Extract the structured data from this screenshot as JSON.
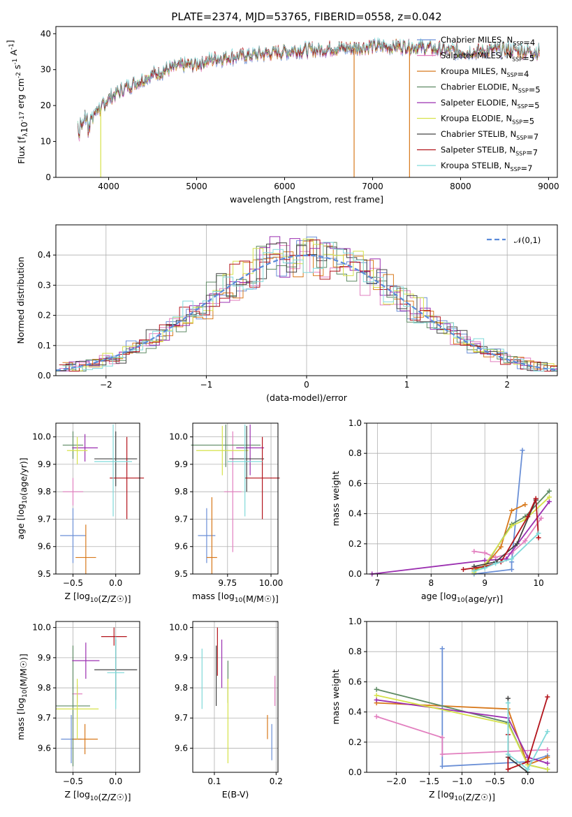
{
  "chart_data": [
    {
      "id": "spectrum",
      "type": "line",
      "title": "PLATE=2374, MJD=53765, FIBERID=0558, z=0.042",
      "xlabel": "wavelength [Angstrom, rest frame]",
      "ylabel": "Flux [f_λ10^-17 erg cm^-2 s^-1 A^-1]",
      "xlim": [
        3400,
        9100
      ],
      "ylim": [
        0,
        42
      ],
      "xticks": [
        4000,
        5000,
        6000,
        7000,
        8000,
        9000
      ],
      "yticks": [
        0,
        10,
        20,
        30,
        40
      ],
      "grid": false,
      "legend_position": "top-right",
      "continuum": {
        "x": [
          3650,
          3700,
          3800,
          3900,
          4000,
          4200,
          4400,
          4600,
          4800,
          5000,
          5200,
          5400,
          5600,
          5800,
          6000,
          6200,
          6400,
          6600,
          6800,
          7000,
          7200,
          7400,
          7600,
          7800,
          8000,
          8200,
          8400,
          8600,
          8800
        ],
        "y": [
          15,
          16,
          18,
          19,
          22,
          25,
          27.5,
          29.5,
          31,
          31.5,
          33,
          33.5,
          34,
          34.5,
          35,
          35.5,
          35.5,
          36,
          36,
          36.5,
          36.5,
          36.5,
          36,
          35.5,
          35,
          35,
          35.5,
          35.5,
          35
        ]
      },
      "series": [
        {
          "name": "Chabrier MILES, N_SSP=4",
          "color": "#6a8fd6"
        },
        {
          "name": "Salpeter MILES, N_SSP=5",
          "color": "#e27fbf"
        },
        {
          "name": "Kroupa MILES, N_SSP=4",
          "color": "#d8791c"
        },
        {
          "name": "Chabrier ELODIE, N_SSP=5",
          "color": "#5e8a63"
        },
        {
          "name": "Salpeter ELODIE, N_SSP=5",
          "color": "#9b2fb0"
        },
        {
          "name": "Kroupa ELODIE, N_SSP=5",
          "color": "#d6e24a"
        },
        {
          "name": "Chabrier STELIB, N_SSP=7",
          "color": "#444444"
        },
        {
          "name": "Salpeter STELIB, N_SSP=7",
          "color": "#b3141c"
        },
        {
          "name": "Kroupa STELIB, N_SSP=7",
          "color": "#7fd9d9"
        }
      ]
    },
    {
      "id": "residuals",
      "type": "histogram",
      "xlabel": "(data-model)/error",
      "ylabel": "Normed distribution",
      "xlim": [
        -2.5,
        2.5
      ],
      "ylim": [
        0,
        0.5
      ],
      "xticks": [
        -2,
        -1,
        0,
        1,
        2
      ],
      "yticks": [
        0.0,
        0.1,
        0.2,
        0.3,
        0.4
      ],
      "grid": true,
      "legend": "𝒩(0,1)",
      "legend_position": "top-right",
      "reference_color": "#5b8bd9"
    },
    {
      "id": "z-age",
      "type": "scatter",
      "xlabel": "Z [log10(Z/Z☉)]",
      "ylabel": "age  [log10(age/yr)]",
      "xlim": [
        -0.7,
        0.28
      ],
      "ylim": [
        9.5,
        10.05
      ],
      "xticks": [
        -0.5,
        0.0
      ],
      "yticks": [
        9.5,
        9.6,
        9.7,
        9.8,
        9.9,
        10.0
      ],
      "grid": true,
      "points": [
        {
          "color": "#6a8fd6",
          "x": -0.5,
          "xerr": 0.15,
          "y": 9.64,
          "yerr": 0.1
        },
        {
          "color": "#e27fbf",
          "x": -0.5,
          "xerr": 0.12,
          "y": 9.8,
          "yerr": 0.05
        },
        {
          "color": "#d8791c",
          "x": -0.35,
          "xerr": 0.12,
          "y": 9.56,
          "yerr": 0.12
        },
        {
          "color": "#5e8a63",
          "x": -0.5,
          "xerr": 0.12,
          "y": 9.97,
          "yerr": 0.05
        },
        {
          "color": "#9b2fb0",
          "x": -0.36,
          "xerr": 0.15,
          "y": 9.96,
          "yerr": 0.05
        },
        {
          "color": "#d6e24a",
          "x": -0.45,
          "xerr": 0.12,
          "y": 9.95,
          "yerr": 0.05
        },
        {
          "color": "#444444",
          "x": 0.0,
          "xerr": 0.25,
          "y": 9.92,
          "yerr": 0.1
        },
        {
          "color": "#b3141c",
          "x": 0.13,
          "xerr": 0.2,
          "y": 9.85,
          "yerr": 0.15
        },
        {
          "color": "#7fd9d9",
          "x": -0.03,
          "xerr": 0.22,
          "y": 9.91,
          "yerr": 0.2
        }
      ]
    },
    {
      "id": "mass-age",
      "type": "scatter",
      "xlabel": "mass [log10(M/M☉)]",
      "ylabel": "",
      "xlim": [
        9.55,
        10.04
      ],
      "ylim": [
        9.5,
        10.05
      ],
      "xticks": [
        9.75,
        10.0
      ],
      "yticks": [
        9.5,
        9.6,
        9.7,
        9.8,
        9.9,
        10.0
      ],
      "grid": true,
      "points": [
        {
          "color": "#6a8fd6",
          "x": 9.63,
          "xerr": 0.05,
          "y": 9.64,
          "yerr": 0.1
        },
        {
          "color": "#e27fbf",
          "x": 9.78,
          "xerr": 0.05,
          "y": 9.8,
          "yerr": 0.22
        },
        {
          "color": "#d8791c",
          "x": 9.66,
          "xerr": 0.03,
          "y": 9.56,
          "yerr": 0.22
        },
        {
          "color": "#5e8a63",
          "x": 9.74,
          "xerr": 0.2,
          "y": 9.97,
          "yerr": 0.08
        },
        {
          "color": "#9b2fb0",
          "x": 9.88,
          "xerr": 0.08,
          "y": 9.96,
          "yerr": 0.1
        },
        {
          "color": "#d6e24a",
          "x": 9.72,
          "xerr": 0.15,
          "y": 9.95,
          "yerr": 0.09
        },
        {
          "color": "#444444",
          "x": 9.86,
          "xerr": 0.1,
          "y": 9.92,
          "yerr": 0.12
        },
        {
          "color": "#b3141c",
          "x": 9.95,
          "xerr": 0.1,
          "y": 9.85,
          "yerr": 0.15
        },
        {
          "color": "#7fd9d9",
          "x": 9.85,
          "xerr": 0.1,
          "y": 9.91,
          "yerr": 0.2
        }
      ]
    },
    {
      "id": "age-weight",
      "type": "line",
      "xlabel": "age  [log10(age/yr)]",
      "ylabel": "mass weight",
      "xlim": [
        6.8,
        10.35
      ],
      "ylim": [
        0,
        1
      ],
      "xticks": [
        7,
        8,
        9,
        10
      ],
      "yticks": [
        0.0,
        0.2,
        0.4,
        0.6,
        0.8,
        1.0
      ],
      "grid": true,
      "series": [
        {
          "color": "#6a8fd6",
          "x": [
            8.8,
            9.5,
            9.5,
            9.7
          ],
          "y": [
            0.0,
            0.03,
            0.08,
            0.82
          ]
        },
        {
          "color": "#e27fbf",
          "x": [
            8.8,
            9.0,
            9.2,
            9.5,
            9.75,
            10.05
          ],
          "y": [
            0.15,
            0.14,
            0.11,
            0.14,
            0.22,
            0.37
          ]
        },
        {
          "color": "#d8791c",
          "x": [
            8.8,
            9.0,
            9.3,
            9.5,
            9.75
          ],
          "y": [
            0.03,
            0.05,
            0.18,
            0.42,
            0.46
          ]
        },
        {
          "color": "#5e8a63",
          "x": [
            8.8,
            9.0,
            9.5,
            9.75,
            10.2
          ],
          "y": [
            0.02,
            0.05,
            0.33,
            0.38,
            0.55
          ]
        },
        {
          "color": "#9b2fb0",
          "x": [
            6.9,
            9.0,
            9.4,
            10.2
          ],
          "y": [
            0.0,
            0.09,
            0.1,
            0.48
          ]
        },
        {
          "color": "#d6e24a",
          "x": [
            8.8,
            9.0,
            9.5,
            9.75,
            10.2
          ],
          "y": [
            0.01,
            0.06,
            0.32,
            0.36,
            0.51
          ]
        },
        {
          "color": "#444444",
          "x": [
            8.8,
            9.2,
            9.6,
            9.95
          ],
          "y": [
            0.05,
            0.08,
            0.2,
            0.49
          ]
        },
        {
          "color": "#b3141c",
          "x": [
            8.6,
            9.0,
            9.3,
            9.8,
            9.95,
            10.0
          ],
          "y": [
            0.03,
            0.05,
            0.08,
            0.38,
            0.5,
            0.24
          ]
        },
        {
          "color": "#7fd9d9",
          "x": [
            8.8,
            9.0,
            9.2,
            9.5,
            10.0
          ],
          "y": [
            0.02,
            0.04,
            0.07,
            0.1,
            0.27
          ]
        }
      ]
    },
    {
      "id": "z-mass",
      "type": "scatter",
      "xlabel": "Z [log10(Z/Z☉)]",
      "ylabel": "mass [log10(M/M☉)]",
      "xlim": [
        -0.7,
        0.28
      ],
      "ylim": [
        9.52,
        10.02
      ],
      "xticks": [
        -0.5,
        0.0
      ],
      "yticks": [
        9.6,
        9.7,
        9.8,
        9.9,
        10.0
      ],
      "grid": true,
      "points": [
        {
          "color": "#6a8fd6",
          "x": -0.52,
          "xerr": 0.12,
          "y": 9.63,
          "yerr": 0.08
        },
        {
          "color": "#e27fbf",
          "x": -0.45,
          "xerr": 0.06,
          "y": 9.78,
          "yerr": 0.03
        },
        {
          "color": "#d8791c",
          "x": -0.36,
          "xerr": 0.15,
          "y": 9.63,
          "yerr": 0.05
        },
        {
          "color": "#5e8a63",
          "x": -0.5,
          "xerr": 0.2,
          "y": 9.74,
          "yerr": 0.2
        },
        {
          "color": "#9b2fb0",
          "x": -0.35,
          "xerr": 0.16,
          "y": 9.89,
          "yerr": 0.06
        },
        {
          "color": "#d6e24a",
          "x": -0.45,
          "xerr": 0.25,
          "y": 9.73,
          "yerr": 0.1
        },
        {
          "color": "#444444",
          "x": 0.0,
          "xerr": 0.25,
          "y": 9.86,
          "yerr": 0.1
        },
        {
          "color": "#b3141c",
          "x": -0.02,
          "xerr": 0.15,
          "y": 9.97,
          "yerr": 0.03
        },
        {
          "color": "#7fd9d9",
          "x": 0.0,
          "xerr": 0.1,
          "y": 9.85,
          "yerr": 0.12
        }
      ]
    },
    {
      "id": "ebv-mass",
      "type": "scatter",
      "xlabel": "E(B-V)",
      "ylabel": "",
      "xlim": [
        0.065,
        0.203
      ],
      "ylim": [
        9.52,
        10.02
      ],
      "xticks": [
        0.1,
        0.2
      ],
      "yticks": [
        9.6,
        9.7,
        9.8,
        9.9,
        10.0
      ],
      "grid": true,
      "points": [
        {
          "color": "#6a8fd6",
          "x": 0.193,
          "yerr": 0.06,
          "y": 9.62
        },
        {
          "color": "#e27fbf",
          "x": 0.198,
          "yerr": 0.05,
          "y": 9.79
        },
        {
          "color": "#d8791c",
          "x": 0.186,
          "yerr": 0.04,
          "y": 9.67
        },
        {
          "color": "#5e8a63",
          "x": 0.122,
          "yerr": 0.07,
          "y": 9.82
        },
        {
          "color": "#9b2fb0",
          "x": 0.112,
          "yerr": 0.08,
          "y": 9.88
        },
        {
          "color": "#d6e24a",
          "x": 0.122,
          "yerr": 0.14,
          "y": 9.69
        },
        {
          "color": "#444444",
          "x": 0.103,
          "yerr": 0.1,
          "y": 9.84
        },
        {
          "color": "#b3141c",
          "x": 0.105,
          "yerr": 0.08,
          "y": 9.92
        },
        {
          "color": "#7fd9d9",
          "x": 0.08,
          "yerr": 0.1,
          "y": 9.83
        }
      ]
    },
    {
      "id": "z-weight",
      "type": "line",
      "xlabel": "Z [log10(Z/Z☉)]",
      "ylabel": "mass weight",
      "xlim": [
        -2.45,
        0.45
      ],
      "ylim": [
        0,
        1
      ],
      "xticks": [
        -2.0,
        -1.5,
        -1.0,
        -0.5,
        0.0
      ],
      "yticks": [
        0.0,
        0.2,
        0.4,
        0.6,
        0.8,
        1.0
      ],
      "grid": true,
      "series": [
        {
          "color": "#6a8fd6",
          "x": [
            -1.3,
            -1.3,
            0.0,
            0.3
          ],
          "y": [
            0.82,
            0.04,
            0.07,
            0.11
          ]
        },
        {
          "color": "#e27fbf",
          "x": [
            -2.3,
            -1.3,
            -1.3,
            0.3
          ],
          "y": [
            0.37,
            0.23,
            0.12,
            0.15
          ]
        },
        {
          "color": "#d8791c",
          "x": [
            -2.3,
            -0.3,
            0.0,
            0.3
          ],
          "y": [
            0.46,
            0.42,
            0.05,
            0.1
          ]
        },
        {
          "color": "#5e8a63",
          "x": [
            -2.3,
            -0.3,
            0.0,
            0.3
          ],
          "y": [
            0.55,
            0.33,
            0.05,
            0.02
          ]
        },
        {
          "color": "#9b2fb0",
          "x": [
            -2.3,
            -0.3,
            0.0,
            0.3
          ],
          "y": [
            0.48,
            0.36,
            0.1,
            0.06
          ]
        },
        {
          "color": "#d6e24a",
          "x": [
            -2.3,
            -0.3,
            0.0,
            0.3
          ],
          "y": [
            0.51,
            0.32,
            0.05,
            0.02
          ]
        },
        {
          "color": "#444444",
          "x": [
            -0.3,
            -0.3,
            0.0
          ],
          "y": [
            0.49,
            0.1,
            0.0
          ]
        },
        {
          "color": "#b3141c",
          "x": [
            -0.3,
            -0.3,
            0.0,
            0.3
          ],
          "y": [
            0.25,
            0.02,
            0.07,
            0.5
          ]
        },
        {
          "color": "#7fd9d9",
          "x": [
            -0.3,
            -0.3,
            0.0,
            0.3
          ],
          "y": [
            0.46,
            0.12,
            0.02,
            0.27
          ]
        }
      ]
    }
  ]
}
